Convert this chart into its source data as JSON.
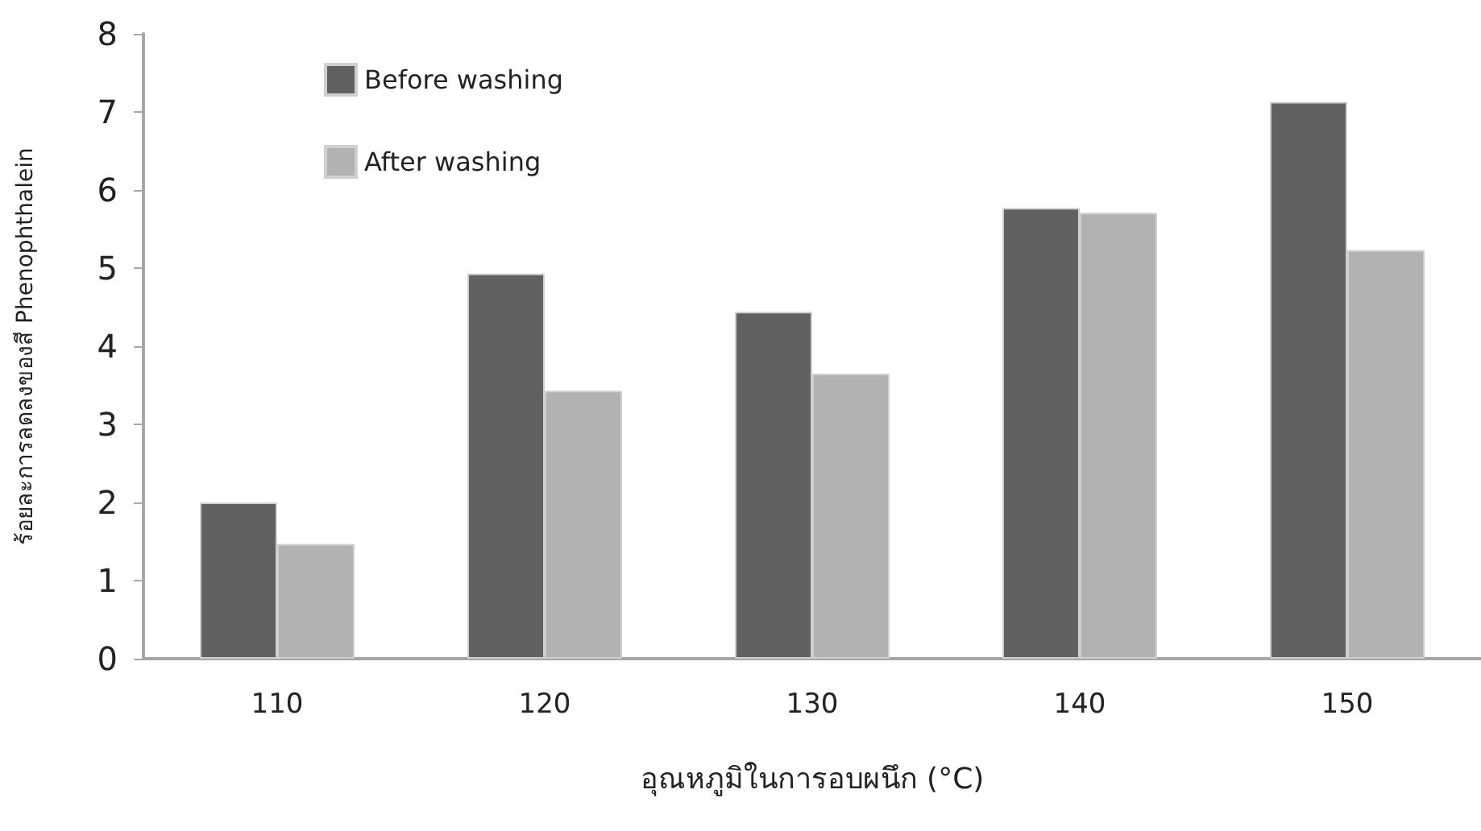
{
  "chart_data": {
    "type": "bar",
    "xlabel": "อุณหภูมิในการอบผนึก (°C)",
    "ylabel": "ร้อยละการลดลงของสี Phenophthalein",
    "categories": [
      "110",
      "120",
      "130",
      "140",
      "150"
    ],
    "series": [
      {
        "name": "Before washing",
        "color": "#616161",
        "values": [
          2.0,
          4.93,
          4.44,
          5.77,
          7.13
        ]
      },
      {
        "name": "After washing",
        "color": "#b2b2b2",
        "values": [
          1.47,
          3.43,
          3.65,
          5.71,
          5.23
        ]
      }
    ],
    "ylim": [
      0,
      8
    ],
    "yticks": [
      0,
      1,
      2,
      3,
      4,
      5,
      6,
      7,
      8
    ],
    "grid": false,
    "legend": "top left"
  }
}
